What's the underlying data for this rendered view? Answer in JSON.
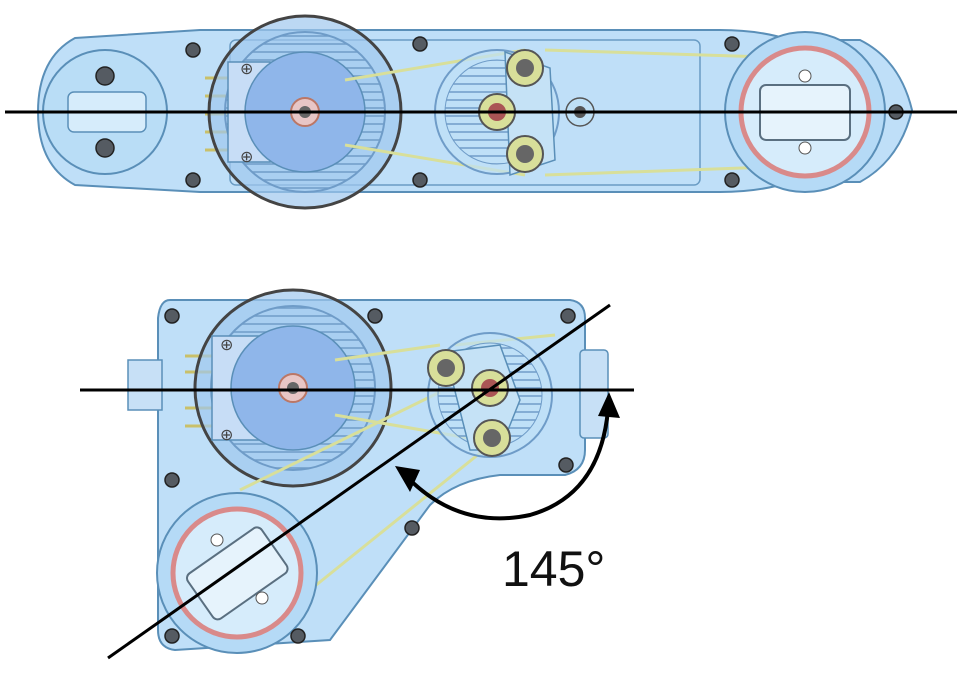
{
  "angle": {
    "label": "145°",
    "degrees": 145
  },
  "colors": {
    "housing_fill": "#a9d4f5",
    "housing_stroke": "#5a8fb8",
    "disc_fill": "#8fb6ea",
    "pulley_fill": "#bfe0f6",
    "belt": "#d8df9a",
    "bearing_red": "#d98a8a",
    "screw": "#555b62",
    "line": "#000000",
    "background": "#ffffff"
  }
}
